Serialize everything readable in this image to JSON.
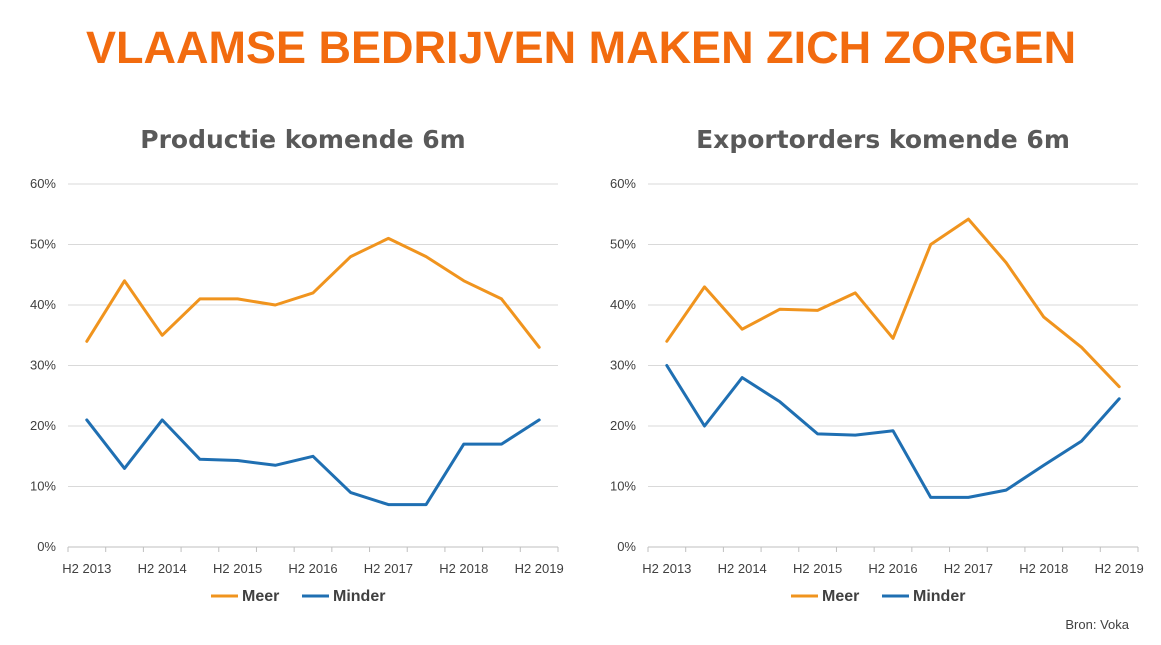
{
  "page": {
    "title": "VLAAMSE BEDRIJVEN MAKEN ZICH ZORGEN",
    "source": "Bron: Voka"
  },
  "colors": {
    "title": "#f26b0f",
    "meer": "#f0941e",
    "minder": "#1f6fb2",
    "grid": "#d9d9d9",
    "axis": "#bfbfbf",
    "text": "#404040",
    "chart_title": "#595959"
  },
  "chart_data": [
    {
      "type": "line",
      "title": "Productie komende 6m",
      "xlabel": "",
      "ylabel": "",
      "ylim": [
        0,
        60
      ],
      "yticks": [
        "0%",
        "10%",
        "20%",
        "30%",
        "40%",
        "50%",
        "60%"
      ],
      "xtick_labels": [
        "H2 2013",
        "H2 2014",
        "H2 2015",
        "H2 2016",
        "H2 2017",
        "H2 2018",
        "H2 2019"
      ],
      "grid": true,
      "legend": "bottom",
      "series": [
        {
          "name": "Meer",
          "values": [
            34,
            44,
            35,
            41,
            41,
            40,
            42,
            48,
            51,
            48,
            44,
            41,
            33
          ]
        },
        {
          "name": "Minder",
          "values": [
            21,
            13,
            21,
            14.5,
            14.3,
            13.5,
            15,
            9,
            7,
            7,
            17,
            17,
            21
          ]
        }
      ]
    },
    {
      "type": "line",
      "title": "Exportorders komende 6m",
      "xlabel": "",
      "ylabel": "",
      "ylim": [
        0,
        60
      ],
      "yticks": [
        "0%",
        "10%",
        "20%",
        "30%",
        "40%",
        "50%",
        "60%"
      ],
      "xtick_labels": [
        "H2 2013",
        "H2 2014",
        "H2 2015",
        "H2 2016",
        "H2 2017",
        "H2 2018",
        "H2 2019"
      ],
      "grid": true,
      "legend": "bottom",
      "series": [
        {
          "name": "Meer",
          "values": [
            34,
            43,
            36,
            39.3,
            39.1,
            42,
            34.5,
            50,
            54.2,
            47,
            38,
            33,
            26.5
          ]
        },
        {
          "name": "Minder",
          "values": [
            30,
            20,
            28,
            24,
            18.7,
            18.5,
            19.2,
            8.2,
            8.2,
            9.4,
            13.5,
            17.5,
            24.5
          ]
        }
      ]
    }
  ]
}
